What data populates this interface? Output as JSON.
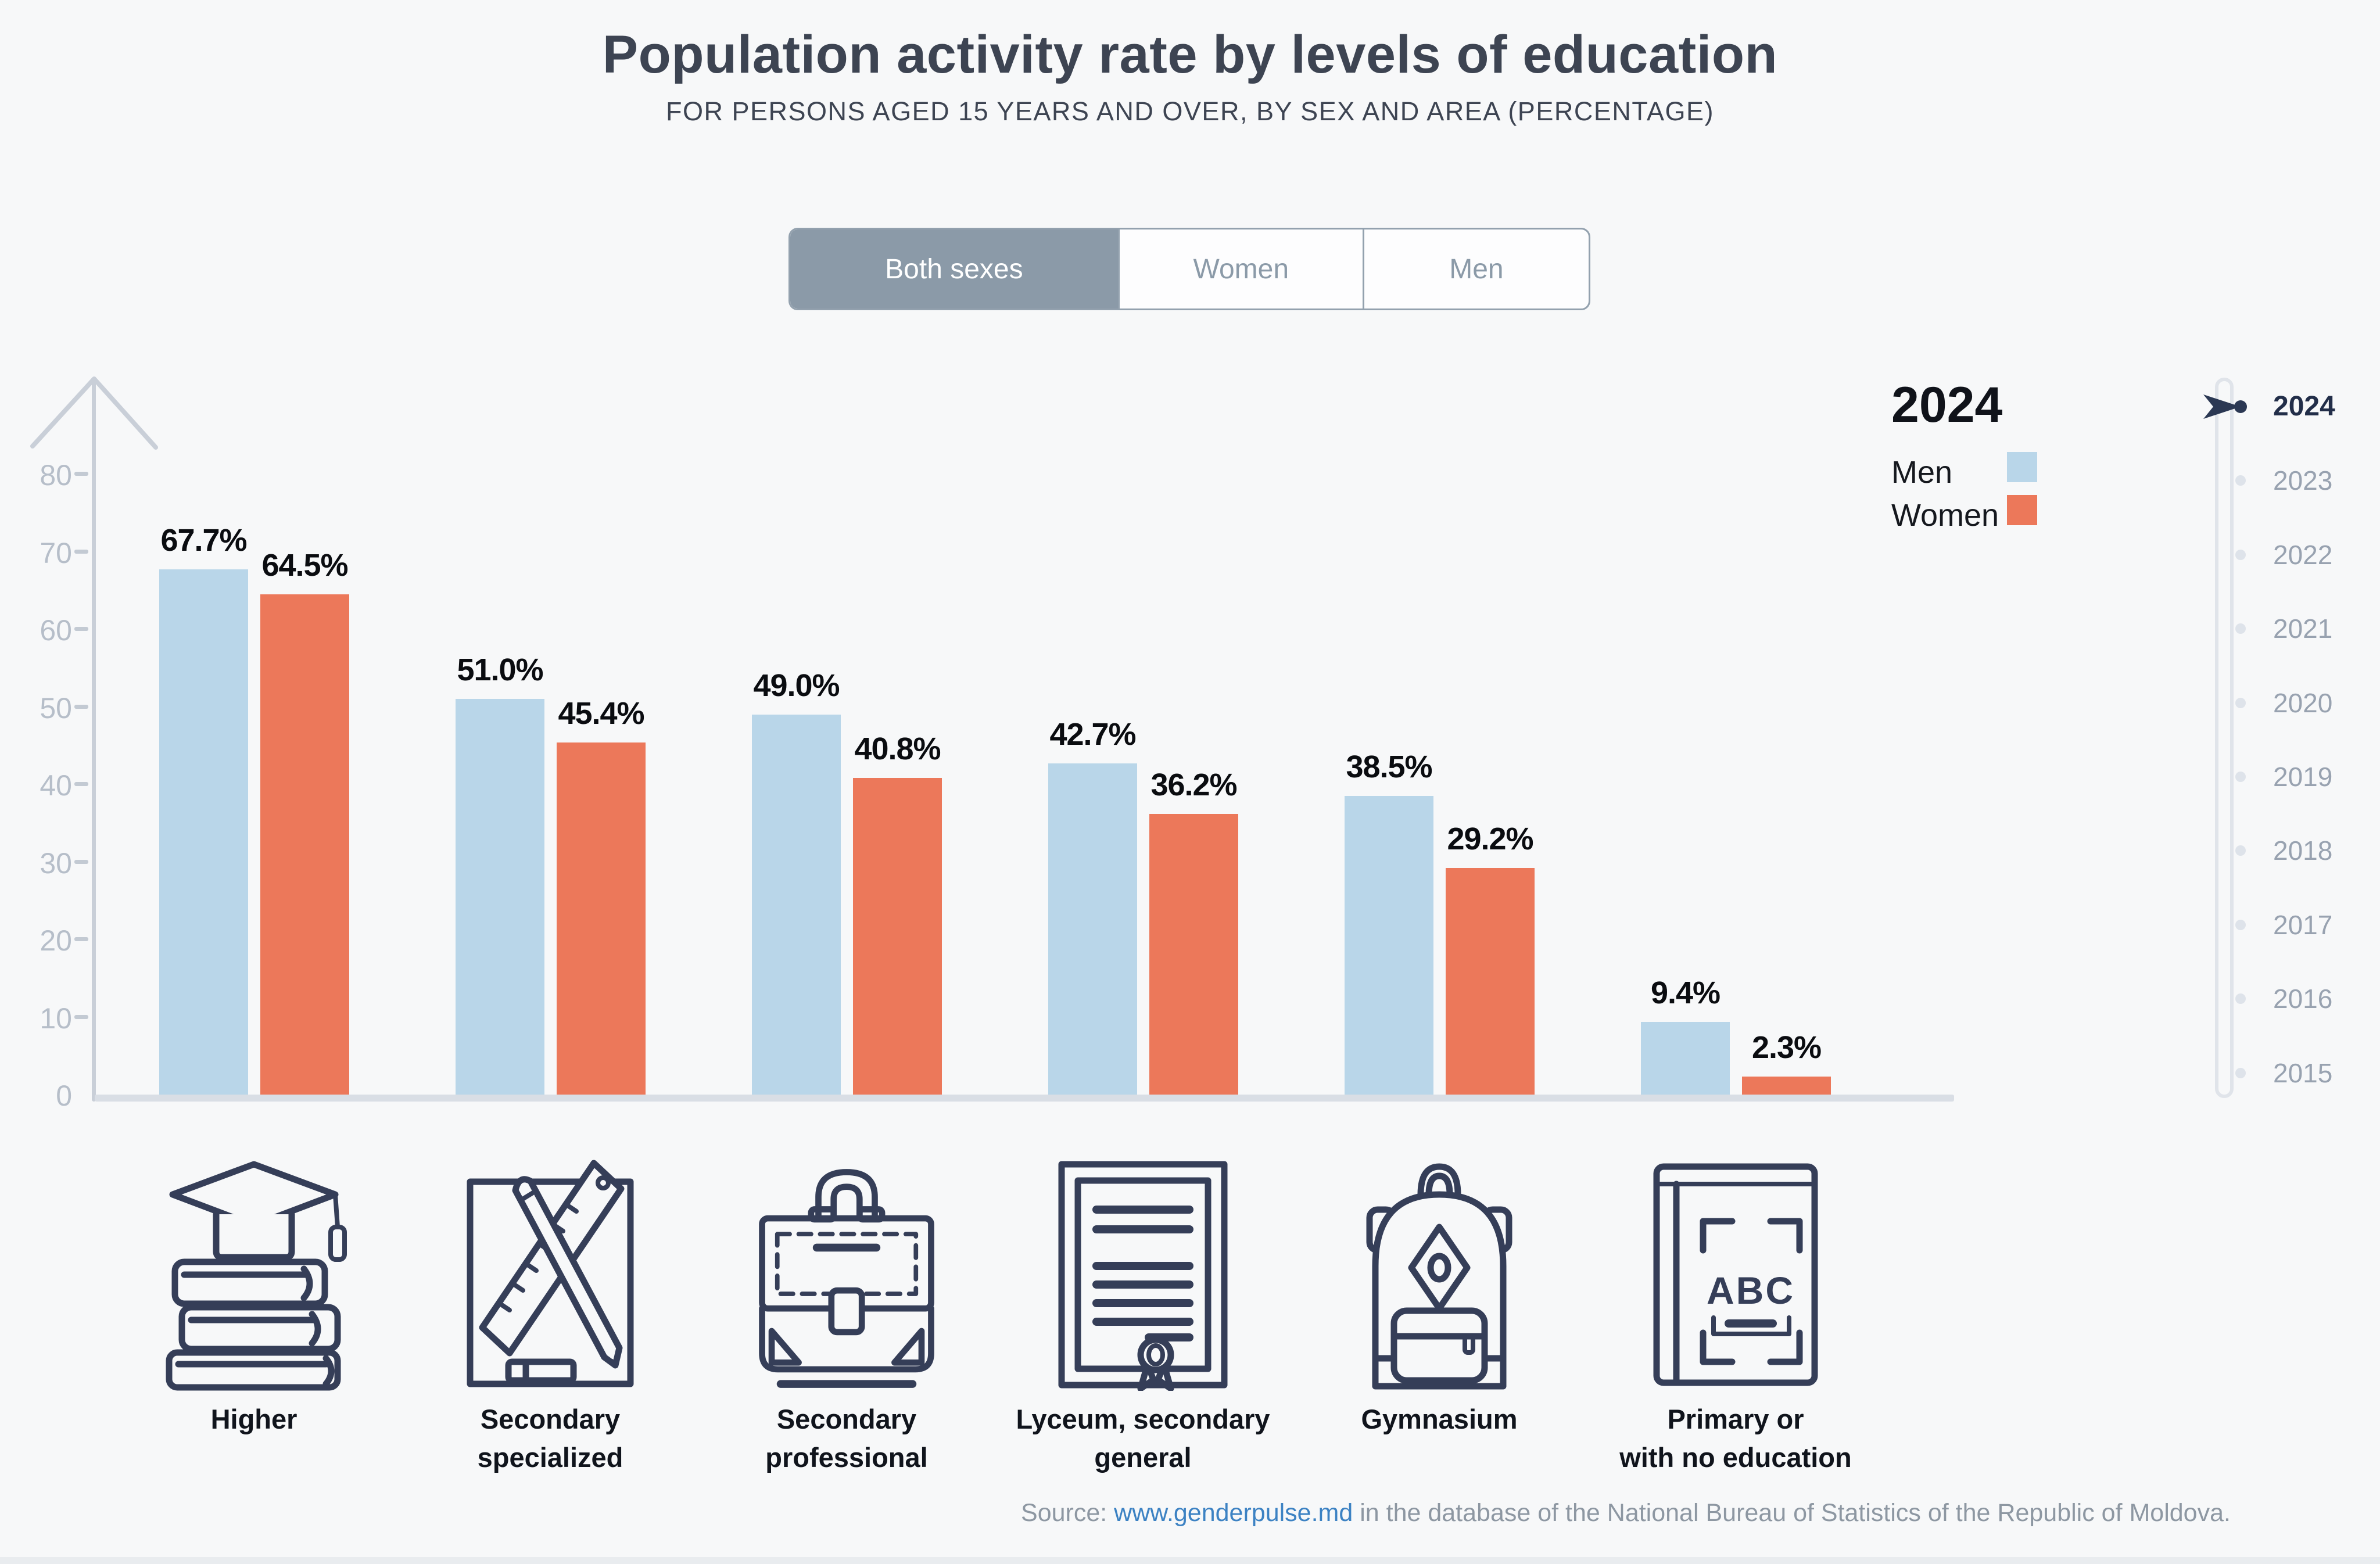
{
  "header": {
    "title": "Population activity rate by levels of education",
    "subtitle": "FOR PERSONS AGED 15 YEARS AND OVER, BY SEX AND AREA (PERCENTAGE)"
  },
  "tabs": [
    {
      "label": "Both sexes",
      "selected": true
    },
    {
      "label": "Women",
      "selected": false
    },
    {
      "label": "Men",
      "selected": false
    }
  ],
  "legend": {
    "year": "2024",
    "items": [
      {
        "label": "Men",
        "color": "#b9d6e9"
      },
      {
        "label": "Women",
        "color": "#ec785a"
      }
    ]
  },
  "timeline": {
    "selected": "2024",
    "years": [
      "2024",
      "2023",
      "2022",
      "2021",
      "2020",
      "2019",
      "2018",
      "2017",
      "2016",
      "2015"
    ]
  },
  "chart_data": {
    "type": "bar",
    "title": "Population activity rate by levels of education",
    "subtitle": "FOR PERSONS AGED 15 YEARS AND OVER, BY SEX AND AREA (PERCENTAGE)",
    "year": "2024",
    "categories": [
      "Higher",
      "Secondary specialized",
      "Secondary professional",
      "Lyceum, secondary general",
      "Gymnasium",
      "Primary or with no education"
    ],
    "category_label_lines": [
      [
        "Higher"
      ],
      [
        "Secondary",
        "specialized"
      ],
      [
        "Secondary",
        "professional"
      ],
      [
        "Lyceum, secondary",
        "general"
      ],
      [
        "Gymnasium"
      ],
      [
        "Primary or",
        "with no education"
      ]
    ],
    "category_icons": [
      "books-graduation-cap-icon",
      "ruler-pencil-sheet-icon",
      "briefcase-icon",
      "diploma-certificate-icon",
      "backpack-icon",
      "abc-book-icon"
    ],
    "series": [
      {
        "name": "Men",
        "color": "#b9d6e9",
        "values": [
          67.7,
          51.0,
          49.0,
          42.7,
          38.5,
          9.4
        ]
      },
      {
        "name": "Women",
        "color": "#ec785a",
        "values": [
          64.5,
          45.4,
          40.8,
          36.2,
          29.2,
          2.3
        ]
      }
    ],
    "value_suffix": "%",
    "yticks": [
      0,
      10,
      20,
      30,
      40,
      50,
      60,
      70,
      80
    ],
    "ylim": [
      0,
      84
    ],
    "xlabel": "",
    "ylabel": "",
    "grid": false,
    "legend_position": "top-right"
  },
  "source": {
    "prefix": "Source: ",
    "link_text": "www.genderpulse.md",
    "suffix": " in the database of the National Bureau of Statistics of the Republic of Moldova."
  }
}
